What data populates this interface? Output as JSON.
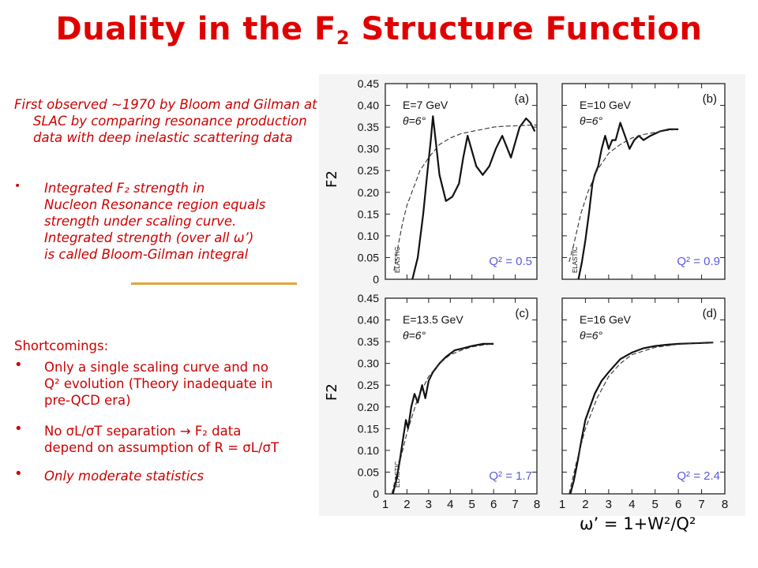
{
  "slide": {
    "title_pre": "Duality in the F",
    "title_sub": "2",
    "title_post": " Structure Function",
    "intro": "First observed ~1970 by Bloom and Gilman at SLAC by comparing resonance production data with deep inelastic scattering data",
    "bullet1_line1": "Integrated F₂ strength in",
    "bullet1_line2": "Nucleon Resonance region equals",
    "bullet1_line3": "strength under scaling curve.",
    "bullet1_line4": "Integrated strength (over all ω’)",
    "bullet1_line5": "is called Bloom-Gilman integral",
    "shortcomings_heading": "Shortcomings:",
    "sc1_line1": "Only a single scaling curve and no",
    "sc1_line2": "Q² evolution (Theory inadequate in",
    "sc1_line3": "pre-QCD era)",
    "sc2_line1": "No σL/σT separation → F₂ data",
    "sc2_line2": "depend on assumption of R = σL/σT",
    "sc3_line1": "Only moderate statistics",
    "bullet_glyph": "•",
    "y_axis_label": "F2",
    "x_axis_label": "ω’ = 1+W²/Q²"
  },
  "chart_data": [
    {
      "type": "line",
      "panel": "(a)",
      "beam": "E=7 GeV",
      "angle": "θ=6°",
      "q2_label": "Q² = 0.5",
      "marker": "ELASTIC",
      "xlim": [
        1,
        8
      ],
      "ylim": [
        0,
        0.45
      ],
      "x_ticks": [],
      "y_ticks": [
        "0",
        "0.05",
        "0.10",
        "0.15",
        "0.20",
        "0.25",
        "0.30",
        "0.35",
        "0.40",
        "0.45"
      ],
      "series": [
        {
          "style": "data",
          "x": [
            2.25,
            2.5,
            2.75,
            2.95,
            3.1,
            3.2,
            3.3,
            3.5,
            3.8,
            4.1,
            4.4,
            4.6,
            4.8,
            5.2,
            5.5,
            5.8,
            6.1,
            6.4,
            6.8,
            7.2,
            7.5,
            7.7,
            7.9
          ],
          "y": [
            0.0,
            0.05,
            0.15,
            0.25,
            0.32,
            0.375,
            0.33,
            0.24,
            0.18,
            0.19,
            0.22,
            0.28,
            0.33,
            0.26,
            0.24,
            0.26,
            0.3,
            0.33,
            0.28,
            0.35,
            0.37,
            0.36,
            0.34
          ]
        },
        {
          "style": "scaling",
          "x": [
            1.4,
            1.6,
            1.8,
            2.0,
            2.3,
            2.6,
            3.0,
            3.5,
            4.0,
            4.5,
            5.0,
            5.5,
            6.0,
            6.5,
            7.0,
            7.5,
            8.0
          ],
          "y": [
            0.02,
            0.08,
            0.13,
            0.17,
            0.21,
            0.25,
            0.28,
            0.31,
            0.325,
            0.335,
            0.34,
            0.345,
            0.35,
            0.352,
            0.353,
            0.354,
            0.355
          ]
        }
      ]
    },
    {
      "type": "line",
      "panel": "(b)",
      "beam": "E=10 GeV",
      "angle": "θ=6°",
      "q2_label": "Q² = 0.9",
      "marker": "ELASTIC",
      "xlim": [
        1,
        8
      ],
      "ylim": [
        0,
        0.45
      ],
      "x_ticks": [],
      "y_ticks": [],
      "series": [
        {
          "style": "data",
          "x": [
            1.7,
            1.85,
            2.0,
            2.15,
            2.3,
            2.4,
            2.55,
            2.7,
            2.85,
            3.0,
            3.15,
            3.3,
            3.5,
            3.7,
            3.9,
            4.1,
            4.3,
            4.5,
            4.8,
            5.2,
            5.6,
            6.0
          ],
          "y": [
            0.0,
            0.04,
            0.09,
            0.15,
            0.22,
            0.24,
            0.26,
            0.3,
            0.33,
            0.3,
            0.32,
            0.32,
            0.36,
            0.33,
            0.3,
            0.32,
            0.33,
            0.32,
            0.33,
            0.34,
            0.345,
            0.345
          ]
        },
        {
          "style": "scaling",
          "x": [
            1.3,
            1.5,
            1.8,
            2.1,
            2.5,
            3.0,
            3.5,
            4.0,
            4.5,
            5.0,
            5.5,
            6.0
          ],
          "y": [
            0.04,
            0.08,
            0.15,
            0.2,
            0.25,
            0.29,
            0.31,
            0.325,
            0.333,
            0.338,
            0.342,
            0.345
          ]
        }
      ]
    },
    {
      "type": "line",
      "panel": "(c)",
      "beam": "E=13.5 GeV",
      "angle": "θ=6°",
      "q2_label": "Q² = 1.7",
      "marker": "ELASTIC",
      "xlim": [
        1,
        8
      ],
      "ylim": [
        0,
        0.45
      ],
      "x_ticks": [
        "1",
        "2",
        "3",
        "4",
        "5",
        "6",
        "7",
        "8"
      ],
      "y_ticks": [
        "0",
        "0.05",
        "0.10",
        "0.15",
        "0.20",
        "0.25",
        "0.30",
        "0.35",
        "0.40",
        "0.45"
      ],
      "series": [
        {
          "style": "data",
          "x": [
            1.35,
            1.5,
            1.65,
            1.8,
            1.95,
            2.05,
            2.2,
            2.35,
            2.5,
            2.7,
            2.85,
            3.0,
            3.2,
            3.5,
            3.8,
            4.2,
            4.6,
            5.0,
            5.5,
            6.0
          ],
          "y": [
            0.0,
            0.03,
            0.07,
            0.12,
            0.17,
            0.15,
            0.2,
            0.23,
            0.21,
            0.25,
            0.22,
            0.26,
            0.28,
            0.3,
            0.315,
            0.33,
            0.335,
            0.34,
            0.345,
            0.345
          ]
        },
        {
          "style": "scaling",
          "x": [
            1.3,
            1.6,
            2.0,
            2.5,
            3.0,
            3.5,
            4.0,
            4.5,
            5.0,
            5.5,
            6.0
          ],
          "y": [
            0.0,
            0.06,
            0.14,
            0.22,
            0.27,
            0.3,
            0.32,
            0.33,
            0.338,
            0.342,
            0.345
          ]
        }
      ]
    },
    {
      "type": "line",
      "panel": "(d)",
      "beam": "E=16 GeV",
      "angle": "θ=6°",
      "q2_label": "Q² = 2.4",
      "marker": "",
      "xlim": [
        1,
        8
      ],
      "ylim": [
        0,
        0.45
      ],
      "x_ticks": [
        "1",
        "2",
        "3",
        "4",
        "5",
        "6",
        "7",
        "8"
      ],
      "y_ticks": [],
      "series": [
        {
          "style": "data",
          "x": [
            1.35,
            1.5,
            1.65,
            1.85,
            2.0,
            2.2,
            2.4,
            2.7,
            3.0,
            3.5,
            4.0,
            4.5,
            5.0,
            5.5,
            6.0,
            6.5,
            7.0,
            7.5
          ],
          "y": [
            0.0,
            0.03,
            0.07,
            0.13,
            0.17,
            0.2,
            0.23,
            0.26,
            0.28,
            0.31,
            0.325,
            0.335,
            0.34,
            0.343,
            0.345,
            0.346,
            0.347,
            0.348
          ]
        },
        {
          "style": "scaling",
          "x": [
            1.3,
            1.6,
            2.0,
            2.5,
            3.0,
            3.5,
            4.0,
            5.0,
            6.0,
            7.0,
            7.5
          ],
          "y": [
            0.0,
            0.07,
            0.15,
            0.22,
            0.27,
            0.3,
            0.32,
            0.337,
            0.344,
            0.347,
            0.348
          ]
        }
      ]
    }
  ]
}
